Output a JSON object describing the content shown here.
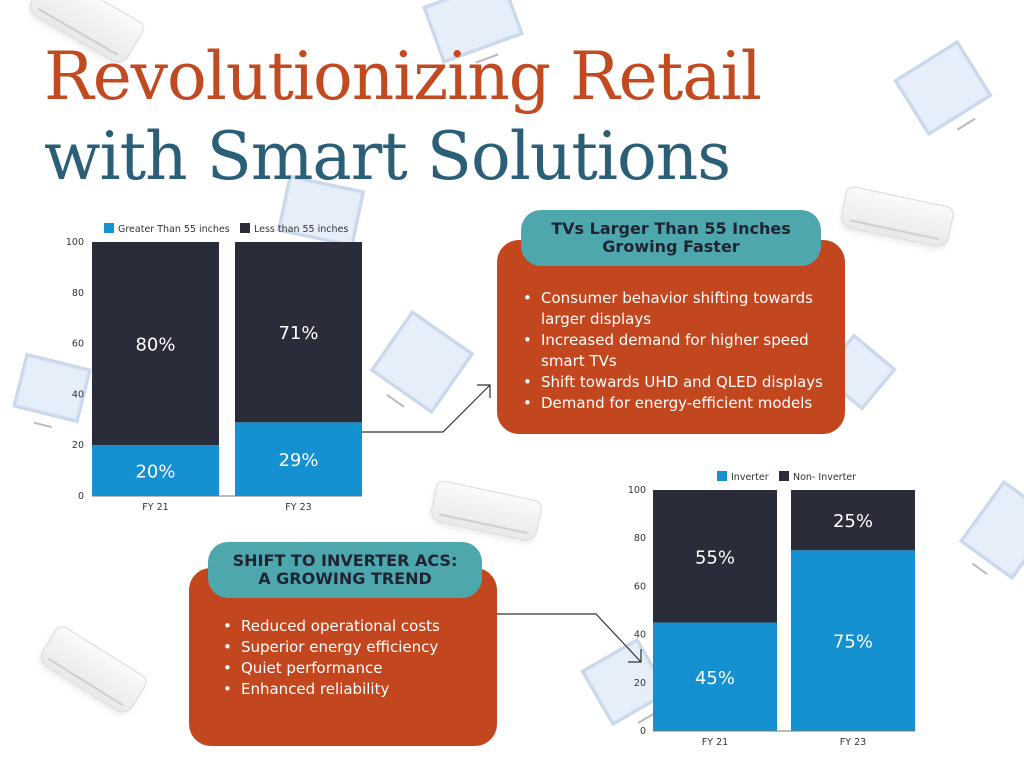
{
  "title_line1": "Revolutionizing Retail",
  "title_line2": "with Smart Solutions",
  "colors": {
    "title_orange": "#c24a21",
    "title_teal": "#2b5f77",
    "bar_blue": "#1590d1",
    "bar_dark": "#2a2c39",
    "box_orange": "#c2461e",
    "pill_teal": "#4fa7ae"
  },
  "tv_box": {
    "heading_line1": "TVs Larger Than 55 Inches",
    "heading_line2": "Growing Faster",
    "bullets": [
      "Consumer behavior shifting towards larger displays",
      "Increased demand for higher speed smart TVs",
      "Shift towards UHD and QLED displays",
      "Demand for energy-efficient models"
    ]
  },
  "ac_box": {
    "heading_line1": "SHIFT TO INVERTER ACS:",
    "heading_line2": "A GROWING TREND",
    "bullets": [
      "Reduced operational costs",
      "Superior energy efficiency",
      "Quiet performance",
      "Enhanced reliability"
    ]
  },
  "chart_data": [
    {
      "type": "bar",
      "stacked": true,
      "categories": [
        "FY 21",
        "FY 23"
      ],
      "series": [
        {
          "name": "Greater Than 55 inches",
          "values": [
            20,
            29
          ],
          "labels": [
            "20%",
            "29%"
          ],
          "color": "#1590d1"
        },
        {
          "name": "Less than 55 inches",
          "values": [
            80,
            71
          ],
          "labels": [
            "80%",
            "71%"
          ],
          "color": "#2a2c39"
        }
      ],
      "y_ticks": [
        "0",
        "20",
        "40",
        "60",
        "80",
        "100"
      ],
      "ylim": [
        0,
        100
      ],
      "legend": "top",
      "grid": false
    },
    {
      "type": "bar",
      "stacked": true,
      "categories": [
        "FY 21",
        "FY 23"
      ],
      "series": [
        {
          "name": "Inverter",
          "values": [
            45,
            75
          ],
          "labels": [
            "45%",
            "75%"
          ],
          "color": "#1590d1"
        },
        {
          "name": "Non- Inverter",
          "values": [
            55,
            25
          ],
          "labels": [
            "55%",
            "25%"
          ],
          "color": "#2a2c39"
        }
      ],
      "y_ticks": [
        "0",
        "20",
        "40",
        "60",
        "80",
        "100"
      ],
      "ylim": [
        0,
        100
      ],
      "legend": "top",
      "grid": false
    }
  ]
}
